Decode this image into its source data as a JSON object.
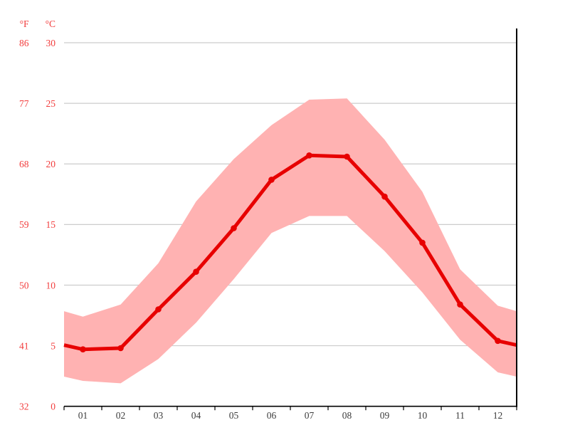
{
  "chart_data": {
    "type": "line",
    "title": "",
    "xlabel": "",
    "ylabel": "",
    "categories": [
      "01",
      "02",
      "03",
      "04",
      "05",
      "06",
      "07",
      "08",
      "09",
      "10",
      "11",
      "12"
    ],
    "series": [
      {
        "name": "average_temperature_c",
        "values": [
          4.7,
          4.8,
          8.0,
          11.1,
          14.7,
          18.7,
          20.7,
          20.6,
          17.3,
          13.5,
          8.4,
          5.4
        ]
      },
      {
        "name": "max_temperature_band_top_c",
        "values": [
          7.4,
          8.4,
          11.8,
          16.9,
          20.4,
          23.2,
          25.3,
          25.4,
          22.0,
          17.7,
          11.3,
          8.3
        ]
      },
      {
        "name": "min_temperature_band_bottom_c",
        "values": [
          2.1,
          1.9,
          3.9,
          6.9,
          10.5,
          14.3,
          15.7,
          15.7,
          12.8,
          9.4,
          5.5,
          2.8
        ]
      }
    ],
    "y_axis": {
      "unit_headers": {
        "fahrenheit": "°F",
        "celsius": "°C"
      },
      "ticks": [
        {
          "f": "32",
          "c": "0"
        },
        {
          "f": "41",
          "c": "5"
        },
        {
          "f": "50",
          "c": "10"
        },
        {
          "f": "59",
          "c": "15"
        },
        {
          "f": "68",
          "c": "20"
        },
        {
          "f": "77",
          "c": "25"
        },
        {
          "f": "86",
          "c": "30"
        }
      ],
      "ylim_c": [
        0,
        30
      ]
    },
    "grid": true,
    "legend": false,
    "layout_hints": {
      "band_edge_rule": "band and line extend to plot edges at midpoint of December/January values",
      "gridlines": "horizontal only, drawn beneath band",
      "plot_frame": "black bottom baseline with month ticks and black right border line"
    },
    "colors": {
      "line": "#e70000",
      "point": "#e70000",
      "band": "#ffb2b2",
      "y_label": "#f23c3c",
      "x_label": "#3c3c3c",
      "gridline": "#cccccc",
      "axis": "#000000",
      "background": "#ffffff"
    }
  }
}
